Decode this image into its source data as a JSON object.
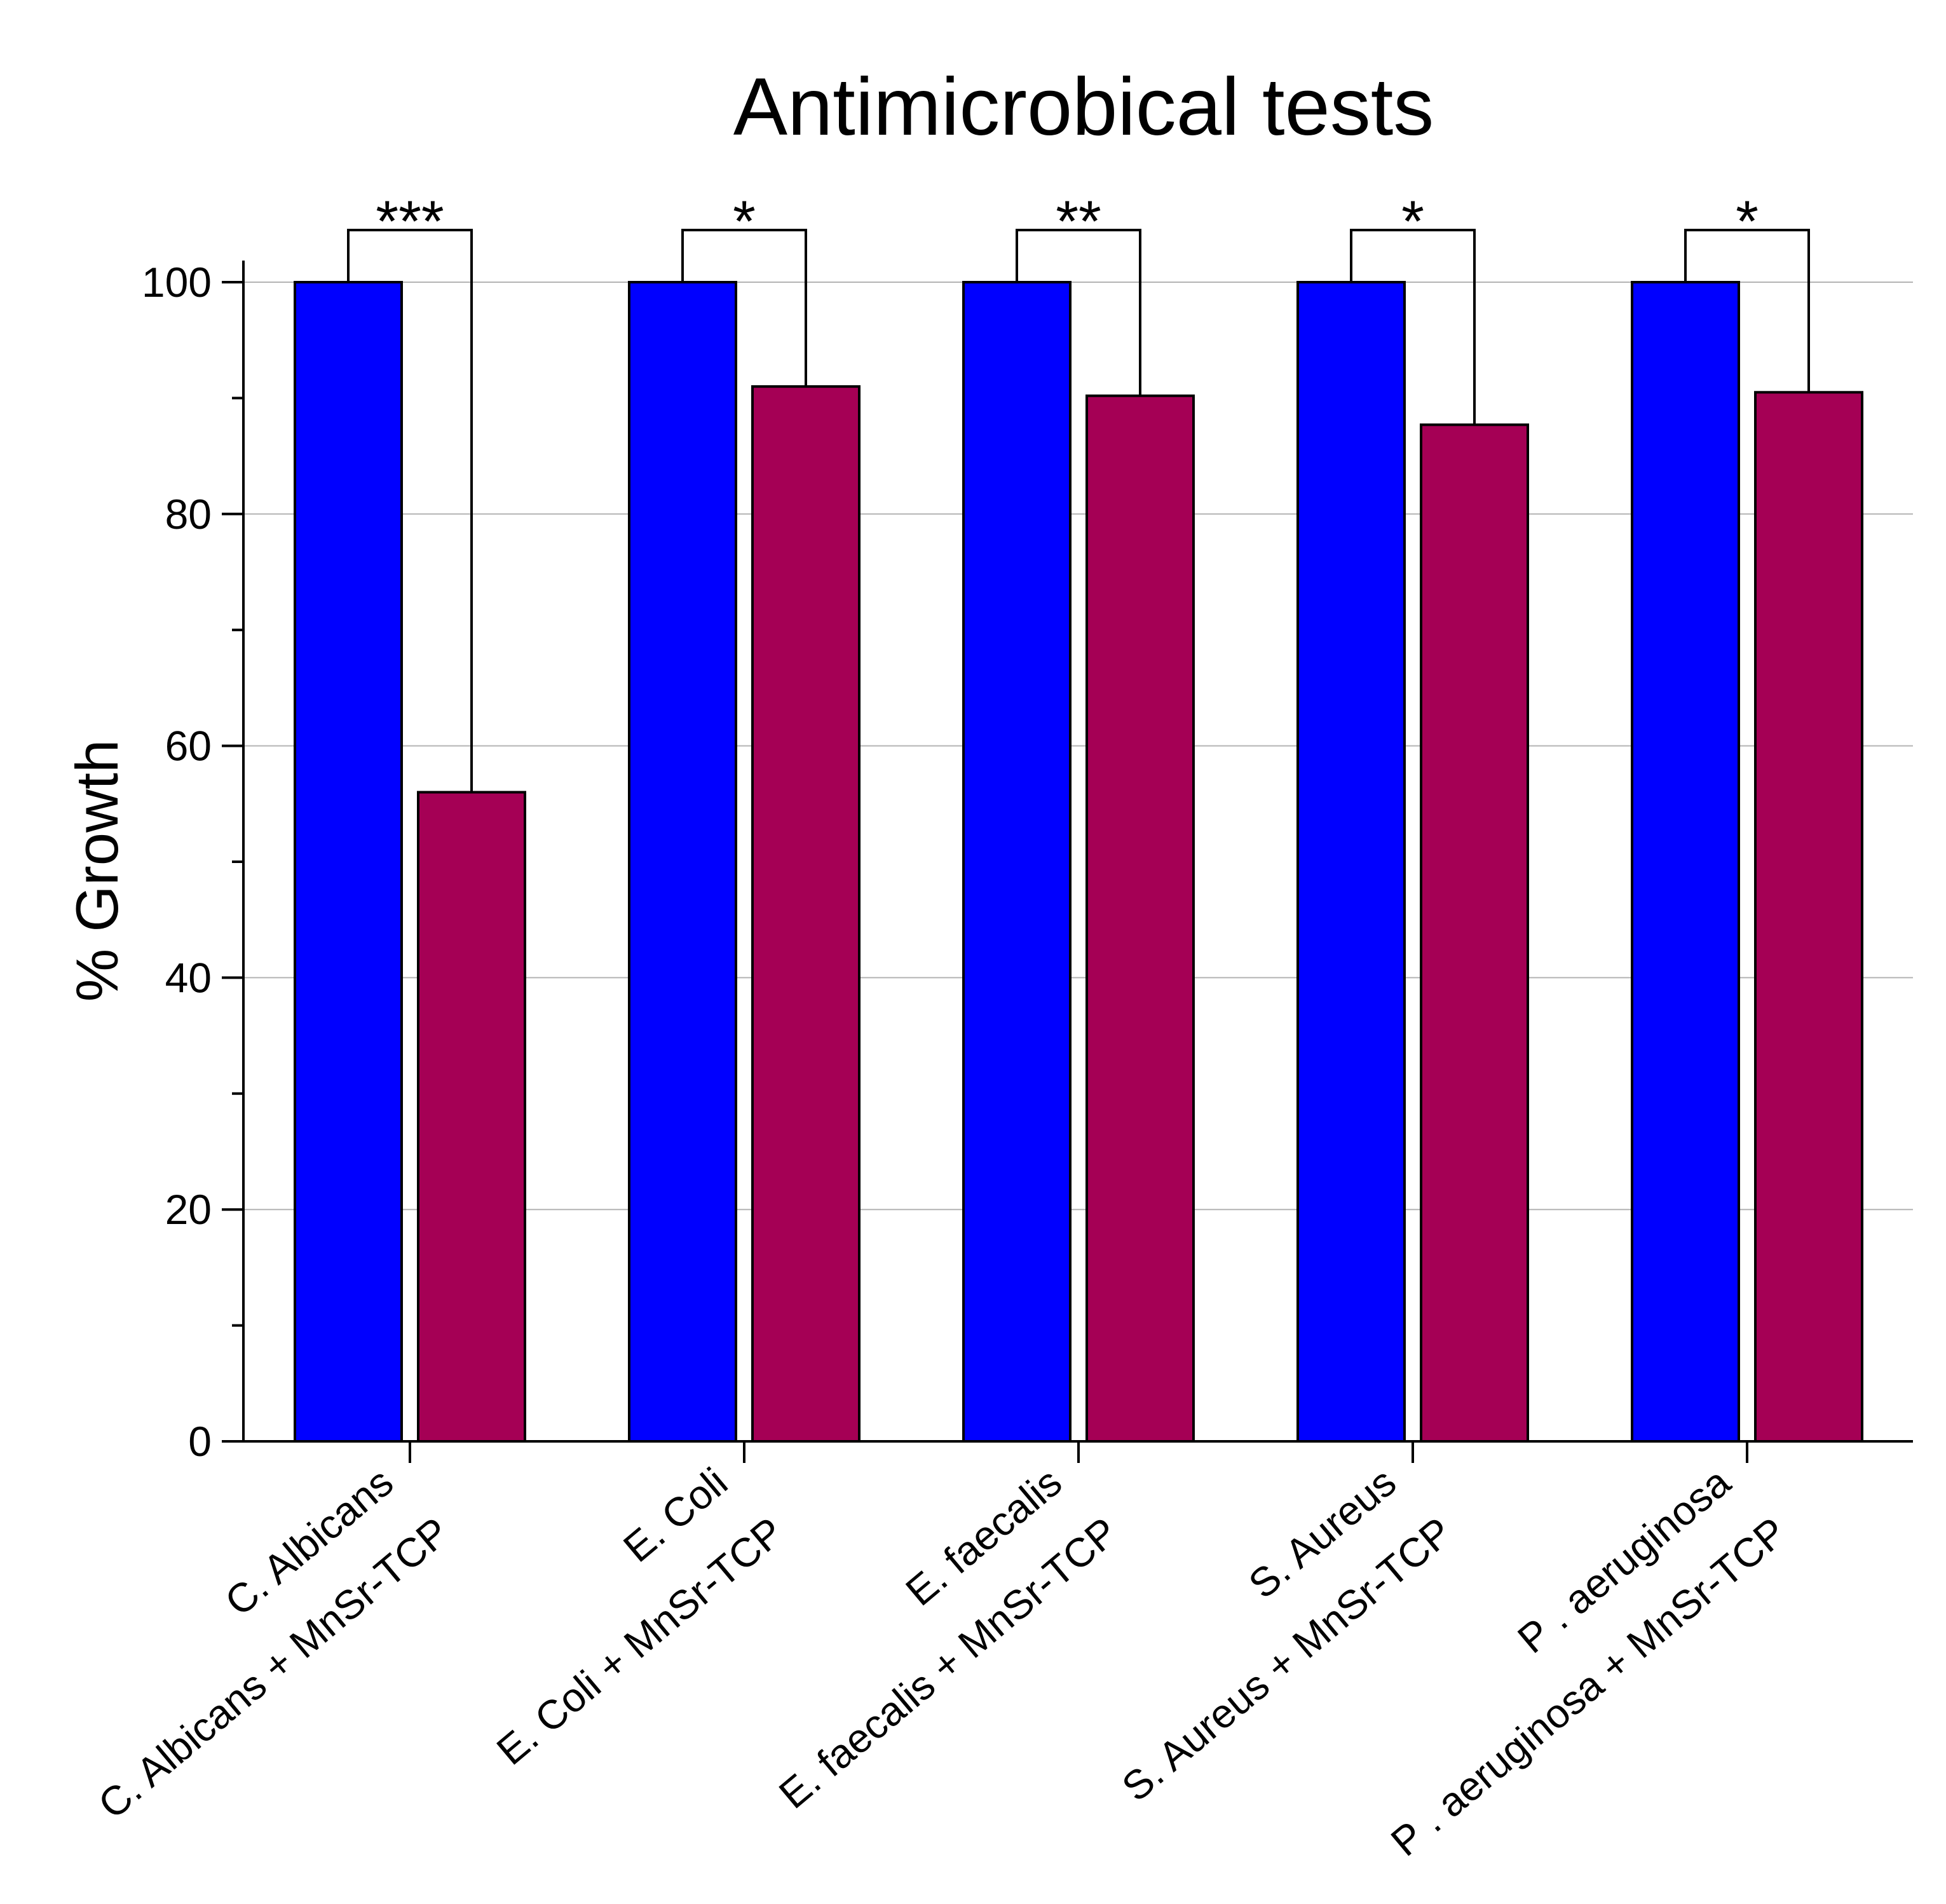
{
  "chart_data": {
    "type": "bar",
    "title": "Antimicrobical tests",
    "xlabel": "",
    "ylabel": "% Growth",
    "ylim": [
      0,
      100
    ],
    "yticks": [
      0,
      20,
      40,
      60,
      80,
      100
    ],
    "grid": true,
    "groups": [
      {
        "control_label": "C. Albicans",
        "treated_label": "C. Albicans + MnSr-TCP",
        "control_value": 100,
        "treated_value": 56,
        "significance": "***"
      },
      {
        "control_label": "E. Coli",
        "treated_label": "E. Coli + MnSr-TCP",
        "control_value": 100,
        "treated_value": 91,
        "significance": "*"
      },
      {
        "control_label": "E. faecalis",
        "treated_label": "E. faecalis + MnSr-TCP",
        "control_value": 100,
        "treated_value": 90.2,
        "significance": "**"
      },
      {
        "control_label": "S. Aureus",
        "treated_label": "S. Aureus + MnSr-TCP",
        "control_value": 100,
        "treated_value": 87.7,
        "significance": "*"
      },
      {
        "control_label": "P . aeruginosa",
        "treated_label": "P . aeruginosa + MnSr-TCP",
        "control_value": 100,
        "treated_value": 90.5,
        "significance": "*"
      }
    ],
    "colors": {
      "control": "#0000ff",
      "treated": "#a50055",
      "grid": "#b4b4b4",
      "axis": "#000000"
    }
  }
}
